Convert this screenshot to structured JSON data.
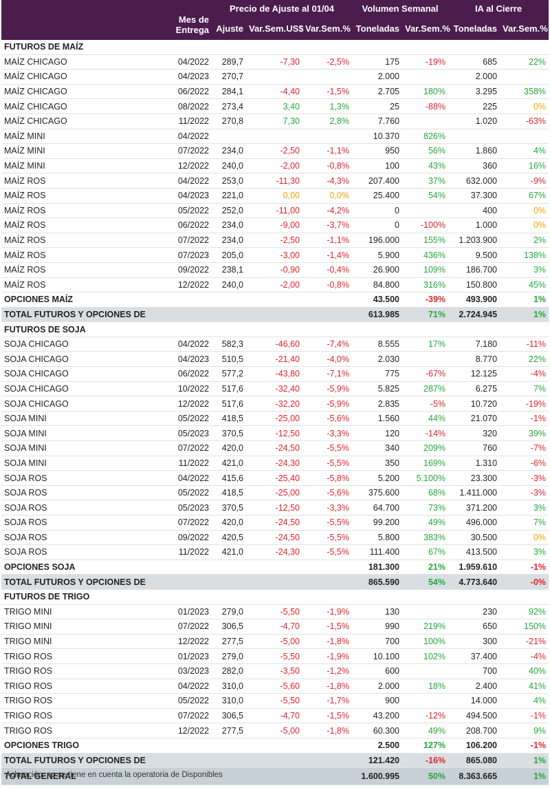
{
  "header": {
    "mes_entrega": [
      "Mes de",
      "Entrega"
    ],
    "precio_group": "Precio de Ajuste al 01/04",
    "volumen_group": "Volumen Semanal",
    "ia_group": "IA al Cierre",
    "ajuste": "Ajuste",
    "var_sem_usd": "Var.Sem.US$",
    "var_sem_pct": "Var.Sem.%",
    "toneladas": "Toneladas"
  },
  "rows": [
    {
      "type": "section",
      "name": "FUTUROS DE MAÍZ"
    },
    {
      "type": "data",
      "name": "MAÍZ CHICAGO",
      "mes": "04/2022",
      "aj": "289,7",
      "vu": "-7,30",
      "vp": "-2,5%",
      "vt": "175",
      "vvp": "-19%",
      "it": "685",
      "ivp": "22%"
    },
    {
      "type": "data",
      "name": "MAÍZ CHICAGO",
      "mes": "04/2023",
      "aj": "270,7",
      "vu": "",
      "vp": "",
      "vt": "2.000",
      "vvp": "",
      "it": "2.000",
      "ivp": ""
    },
    {
      "type": "data",
      "name": "MAÍZ CHICAGO",
      "mes": "06/2022",
      "aj": "284,1",
      "vu": "-4,40",
      "vp": "-1,5%",
      "vt": "2.705",
      "vvp": "180%",
      "it": "3.295",
      "ivp": "358%"
    },
    {
      "type": "data",
      "name": "MAÍZ CHICAGO",
      "mes": "08/2022",
      "aj": "273,4",
      "vu": "3,40",
      "vp": "1,3%",
      "vt": "25",
      "vvp": "-88%",
      "it": "225",
      "ivp": "0%"
    },
    {
      "type": "data",
      "name": "MAÍZ CHICAGO",
      "mes": "11/2022",
      "aj": "270,8",
      "vu": "7,30",
      "vp": "2,8%",
      "vt": "7.760",
      "vvp": "",
      "it": "1.020",
      "ivp": "-63%"
    },
    {
      "type": "data",
      "name": "MAÍZ MINI",
      "mes": "04/2022",
      "aj": "",
      "vu": "",
      "vp": "",
      "vt": "10.370",
      "vvp": "826%",
      "it": "",
      "ivp": ""
    },
    {
      "type": "data",
      "name": "MAÍZ MINI",
      "mes": "07/2022",
      "aj": "234,0",
      "vu": "-2,50",
      "vp": "-1,1%",
      "vt": "950",
      "vvp": "56%",
      "it": "1.860",
      "ivp": "4%"
    },
    {
      "type": "data",
      "name": "MAÍZ MINI",
      "mes": "12/2022",
      "aj": "240,0",
      "vu": "-2,00",
      "vp": "-0,8%",
      "vt": "100",
      "vvp": "43%",
      "it": "360",
      "ivp": "16%"
    },
    {
      "type": "data",
      "name": "MAÍZ ROS",
      "mes": "04/2022",
      "aj": "253,0",
      "vu": "-11,30",
      "vp": "-4,3%",
      "vt": "207.400",
      "vvp": "37%",
      "it": "632.000",
      "ivp": "-9%"
    },
    {
      "type": "data",
      "name": "MAÍZ ROS",
      "mes": "04/2023",
      "aj": "221,0",
      "vu": "0,00",
      "vp": "0,0%",
      "vt": "25.400",
      "vvp": "54%",
      "it": "37.300",
      "ivp": "67%"
    },
    {
      "type": "data",
      "name": "MAÍZ ROS",
      "mes": "05/2022",
      "aj": "252,0",
      "vu": "-11,00",
      "vp": "-4,2%",
      "vt": "0",
      "vvp": "",
      "it": "400",
      "ivp": "0%"
    },
    {
      "type": "data",
      "name": "MAÍZ ROS",
      "mes": "06/2022",
      "aj": "234,0",
      "vu": "-9,00",
      "vp": "-3,7%",
      "vt": "0",
      "vvp": "-100%",
      "it": "1.000",
      "ivp": "0%"
    },
    {
      "type": "data",
      "name": "MAÍZ ROS",
      "mes": "07/2022",
      "aj": "234,0",
      "vu": "-2,50",
      "vp": "-1,1%",
      "vt": "196.000",
      "vvp": "155%",
      "it": "1.203.900",
      "ivp": "2%"
    },
    {
      "type": "data",
      "name": "MAÍZ ROS",
      "mes": "07/2023",
      "aj": "205,0",
      "vu": "-3,00",
      "vp": "-1,4%",
      "vt": "5.900",
      "vvp": "436%",
      "it": "9.500",
      "ivp": "138%"
    },
    {
      "type": "data",
      "name": "MAÍZ ROS",
      "mes": "09/2022",
      "aj": "238,1",
      "vu": "-0,90",
      "vp": "-0,4%",
      "vt": "26.900",
      "vvp": "109%",
      "it": "186.700",
      "ivp": "3%"
    },
    {
      "type": "data",
      "name": "MAÍZ ROS",
      "mes": "12/2022",
      "aj": "240,0",
      "vu": "-2,00",
      "vp": "-0,8%",
      "vt": "84.800",
      "vvp": "316%",
      "it": "150.800",
      "ivp": "45%"
    },
    {
      "type": "opt",
      "name": "OPCIONES MAÍZ",
      "vt": "43.500",
      "vvp": "-39%",
      "it": "493.900",
      "ivp": "1%"
    },
    {
      "type": "total",
      "name": "TOTAL FUTUROS Y OPCIONES DE MAÍZ",
      "vt": "613.985",
      "vvp": "71%",
      "it": "2.724.945",
      "ivp": "1%"
    },
    {
      "type": "section",
      "name": "FUTUROS DE SOJA"
    },
    {
      "type": "data",
      "name": "SOJA CHICAGO",
      "mes": "04/2022",
      "aj": "582,3",
      "vu": "-46,60",
      "vp": "-7,4%",
      "vt": "8.555",
      "vvp": "17%",
      "it": "7.180",
      "ivp": "-11%"
    },
    {
      "type": "data",
      "name": "SOJA CHICAGO",
      "mes": "04/2023",
      "aj": "510,5",
      "vu": "-21,40",
      "vp": "-4,0%",
      "vt": "2.030",
      "vvp": "",
      "it": "8.770",
      "ivp": "22%"
    },
    {
      "type": "data",
      "name": "SOJA CHICAGO",
      "mes": "06/2022",
      "aj": "577,2",
      "vu": "-43,80",
      "vp": "-7,1%",
      "vt": "775",
      "vvp": "-67%",
      "it": "12.125",
      "ivp": "-4%"
    },
    {
      "type": "data",
      "name": "SOJA CHICAGO",
      "mes": "10/2022",
      "aj": "517,6",
      "vu": "-32,40",
      "vp": "-5,9%",
      "vt": "5.825",
      "vvp": "287%",
      "it": "6.275",
      "ivp": "7%"
    },
    {
      "type": "data",
      "name": "SOJA CHICAGO",
      "mes": "12/2022",
      "aj": "517,6",
      "vu": "-32,20",
      "vp": "-5,9%",
      "vt": "2.835",
      "vvp": "-5%",
      "it": "10.720",
      "ivp": "-19%"
    },
    {
      "type": "data",
      "name": "SOJA MINI",
      "mes": "05/2022",
      "aj": "418,5",
      "vu": "-25,00",
      "vp": "-5,6%",
      "vt": "1.560",
      "vvp": "44%",
      "it": "21.070",
      "ivp": "-1%"
    },
    {
      "type": "data",
      "name": "SOJA MINI",
      "mes": "05/2023",
      "aj": "370,5",
      "vu": "-12,50",
      "vp": "-3,3%",
      "vt": "120",
      "vvp": "-14%",
      "it": "320",
      "ivp": "39%"
    },
    {
      "type": "data",
      "name": "SOJA MINI",
      "mes": "07/2022",
      "aj": "420,0",
      "vu": "-24,50",
      "vp": "-5,5%",
      "vt": "340",
      "vvp": "209%",
      "it": "760",
      "ivp": "-7%"
    },
    {
      "type": "data",
      "name": "SOJA MINI",
      "mes": "11/2022",
      "aj": "421,0",
      "vu": "-24,30",
      "vp": "-5,5%",
      "vt": "350",
      "vvp": "169%",
      "it": "1.310",
      "ivp": "-6%"
    },
    {
      "type": "data",
      "name": "SOJA ROS",
      "mes": "04/2022",
      "aj": "415,6",
      "vu": "-25,40",
      "vp": "-5,8%",
      "vt": "5.200",
      "vvp": "5.100%",
      "it": "23.300",
      "ivp": "-3%"
    },
    {
      "type": "data",
      "name": "SOJA ROS",
      "mes": "05/2022",
      "aj": "418,5",
      "vu": "-25,00",
      "vp": "-5,6%",
      "vt": "375.600",
      "vvp": "68%",
      "it": "1.411.000",
      "ivp": "-3%"
    },
    {
      "type": "data",
      "name": "SOJA ROS",
      "mes": "05/2023",
      "aj": "370,5",
      "vu": "-12,50",
      "vp": "-3,3%",
      "vt": "64.700",
      "vvp": "73%",
      "it": "371.200",
      "ivp": "3%"
    },
    {
      "type": "data",
      "name": "SOJA ROS",
      "mes": "07/2022",
      "aj": "420,0",
      "vu": "-24,50",
      "vp": "-5,5%",
      "vt": "99.200",
      "vvp": "49%",
      "it": "496.000",
      "ivp": "7%"
    },
    {
      "type": "data",
      "name": "SOJA ROS",
      "mes": "09/2022",
      "aj": "420,5",
      "vu": "-24,50",
      "vp": "-5,5%",
      "vt": "5.800",
      "vvp": "383%",
      "it": "30.500",
      "ivp": "0%"
    },
    {
      "type": "data",
      "name": "SOJA ROS",
      "mes": "11/2022",
      "aj": "421,0",
      "vu": "-24,30",
      "vp": "-5,5%",
      "vt": "111.400",
      "vvp": "67%",
      "it": "413.500",
      "ivp": "3%"
    },
    {
      "type": "opt",
      "name": "OPCIONES SOJA",
      "vt": "181.300",
      "vvp": "21%",
      "it": "1.959.610",
      "ivp": "-1%"
    },
    {
      "type": "total",
      "name": "TOTAL FUTUROS Y OPCIONES DE SOJA",
      "vt": "865.590",
      "vvp": "54%",
      "it": "4.773.640",
      "ivp": "-0%"
    },
    {
      "type": "section",
      "name": "FUTUROS DE TRIGO"
    },
    {
      "type": "data",
      "name": "TRIGO MINI",
      "mes": "01/2023",
      "aj": "279,0",
      "vu": "-5,50",
      "vp": "-1,9%",
      "vt": "130",
      "vvp": "",
      "it": "230",
      "ivp": "92%"
    },
    {
      "type": "data",
      "name": "TRIGO MINI",
      "mes": "07/2022",
      "aj": "306,5",
      "vu": "-4,70",
      "vp": "-1,5%",
      "vt": "990",
      "vvp": "219%",
      "it": "650",
      "ivp": "150%"
    },
    {
      "type": "data",
      "name": "TRIGO MINI",
      "mes": "12/2022",
      "aj": "277,5",
      "vu": "-5,00",
      "vp": "-1,8%",
      "vt": "700",
      "vvp": "100%",
      "it": "300",
      "ivp": "-21%"
    },
    {
      "type": "data",
      "name": "TRIGO ROS",
      "mes": "01/2023",
      "aj": "279,0",
      "vu": "-5,50",
      "vp": "-1,9%",
      "vt": "10.100",
      "vvp": "102%",
      "it": "37.400",
      "ivp": "-4%"
    },
    {
      "type": "data",
      "name": "TRIGO ROS",
      "mes": "03/2023",
      "aj": "282,0",
      "vu": "-3,50",
      "vp": "-1,2%",
      "vt": "600",
      "vvp": "",
      "it": "700",
      "ivp": "40%"
    },
    {
      "type": "data",
      "name": "TRIGO ROS",
      "mes": "04/2022",
      "aj": "310,0",
      "vu": "-5,60",
      "vp": "-1,8%",
      "vt": "2.000",
      "vvp": "18%",
      "it": "2.400",
      "ivp": "41%"
    },
    {
      "type": "data",
      "name": "TRIGO ROS",
      "mes": "05/2022",
      "aj": "310,0",
      "vu": "-5,50",
      "vp": "-1,7%",
      "vt": "900",
      "vvp": "",
      "it": "14.000",
      "ivp": "4%"
    },
    {
      "type": "data",
      "name": "TRIGO ROS",
      "mes": "07/2022",
      "aj": "306,5",
      "vu": "-4,70",
      "vp": "-1,5%",
      "vt": "43.200",
      "vvp": "-12%",
      "it": "494.500",
      "ivp": "-1%"
    },
    {
      "type": "data",
      "name": "TRIGO ROS",
      "mes": "12/2022",
      "aj": "277,5",
      "vu": "-5,00",
      "vp": "-1,8%",
      "vt": "60.300",
      "vvp": "49%",
      "it": "208.700",
      "ivp": "9%"
    },
    {
      "type": "opt",
      "name": "OPCIONES TRIGO",
      "vt": "2.500",
      "vvp": "127%",
      "it": "106.200",
      "ivp": "-1%"
    },
    {
      "type": "total",
      "name": "TOTAL FUTUROS Y OPCIONES DE TRIGO",
      "vt": "121.420",
      "vvp": "-16%",
      "it": "865.080",
      "ivp": "1%"
    },
    {
      "type": "grand",
      "name": "TOTAL GENERAL",
      "vt": "1.600.995",
      "vvp": "50%",
      "it": "8.363.665",
      "ivp": "1%"
    }
  ],
  "note": "Aclaración: no se tiene en cuenta la operatoria de Disponibles",
  "colors": {
    "header_bg": "#4a1d4c",
    "negative": "#e0242b",
    "positive": "#24a83a",
    "zero": "#f0a400",
    "total_bg": "#d9dee2",
    "grand_bg": "#c7d0d6"
  }
}
